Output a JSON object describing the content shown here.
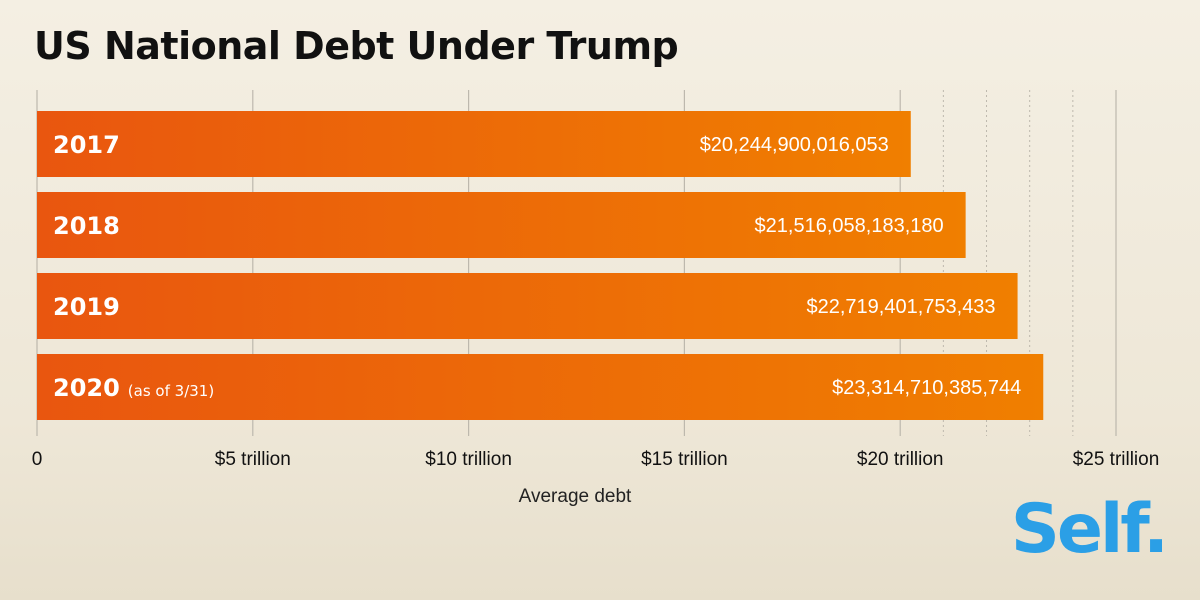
{
  "chart_data": {
    "type": "bar",
    "orientation": "horizontal",
    "title": "US National Debt Under Trump",
    "xlabel": "Average debt",
    "ylabel": "",
    "xlim": [
      0,
      26000000000000
    ],
    "grid": true,
    "categories": [
      "2017",
      "2018",
      "2019",
      "2020"
    ],
    "category_notes": [
      "",
      "",
      "",
      "(as of 3/31)"
    ],
    "values": [
      20244900016053,
      21516058183180,
      22719401753433,
      23314710385744
    ],
    "value_labels": [
      "$20,244,900,016,053",
      "$21,516,058,183,180",
      "$22,719,401,753,433",
      "$23,314,710,385,744"
    ],
    "ticks": [
      {
        "value": 0,
        "label": "0"
      },
      {
        "value": 5000000000000,
        "label": "$5 trillion"
      },
      {
        "value": 10000000000000,
        "label": "$10 trillion"
      },
      {
        "value": 15000000000000,
        "label": "$15 trillion"
      },
      {
        "value": 20000000000000,
        "label": "$20 trillion"
      },
      {
        "value": 25000000000000,
        "label": "$25 trillion"
      }
    ],
    "minor_ticks": [
      21000000000000,
      22000000000000,
      23000000000000,
      24000000000000
    ],
    "colors": {
      "bar_start": "#e9560f",
      "bar_end": "#f07f00",
      "grid": "#bdb8ad",
      "text": "#ffffff"
    }
  },
  "brand": {
    "logo": "Self.",
    "logo_color": "#2b9fe6"
  }
}
